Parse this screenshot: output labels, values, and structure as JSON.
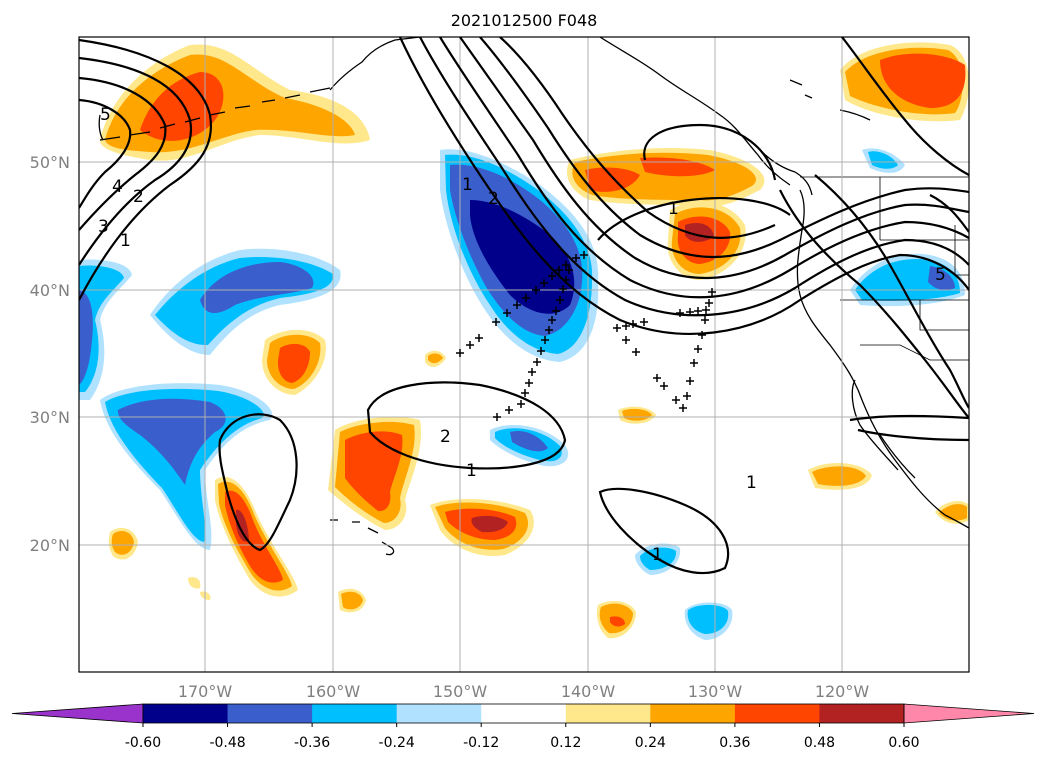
{
  "title": "2021012500 F048",
  "map": {
    "lat_labels": [
      "50°N",
      "40°N",
      "30°N",
      "20°N"
    ],
    "lon_labels": [
      "170°W",
      "160°W",
      "150°W",
      "140°W",
      "130°W",
      "120°W"
    ],
    "gridlines": true
  },
  "contour_labels": [
    "5",
    "4",
    "3",
    "2",
    "1",
    "1",
    "2",
    "1",
    "2",
    "1",
    "1",
    "1",
    "5"
  ],
  "colorbar": {
    "ticks": [
      "-0.60",
      "-0.48",
      "-0.36",
      "-0.24",
      "-0.12",
      "0.12",
      "0.24",
      "0.36",
      "0.48",
      "0.60"
    ],
    "colors": [
      "#9933cc",
      "#00008b",
      "#3a5fcd",
      "#00bfff",
      "#b0e2ff",
      "#ffffff",
      "#ffe88c",
      "#ffa500",
      "#ff4500",
      "#b22222",
      "#ff88aa"
    ]
  },
  "colors": {
    "neg_strong": "#00008b",
    "neg_mid": "#3a5fcd",
    "neg_light": "#00bfff",
    "neg_faint": "#b0e2ff",
    "pos_faint": "#ffe88c",
    "pos_light": "#ffa500",
    "pos_mid": "#ff4500",
    "pos_strong": "#b22222"
  }
}
